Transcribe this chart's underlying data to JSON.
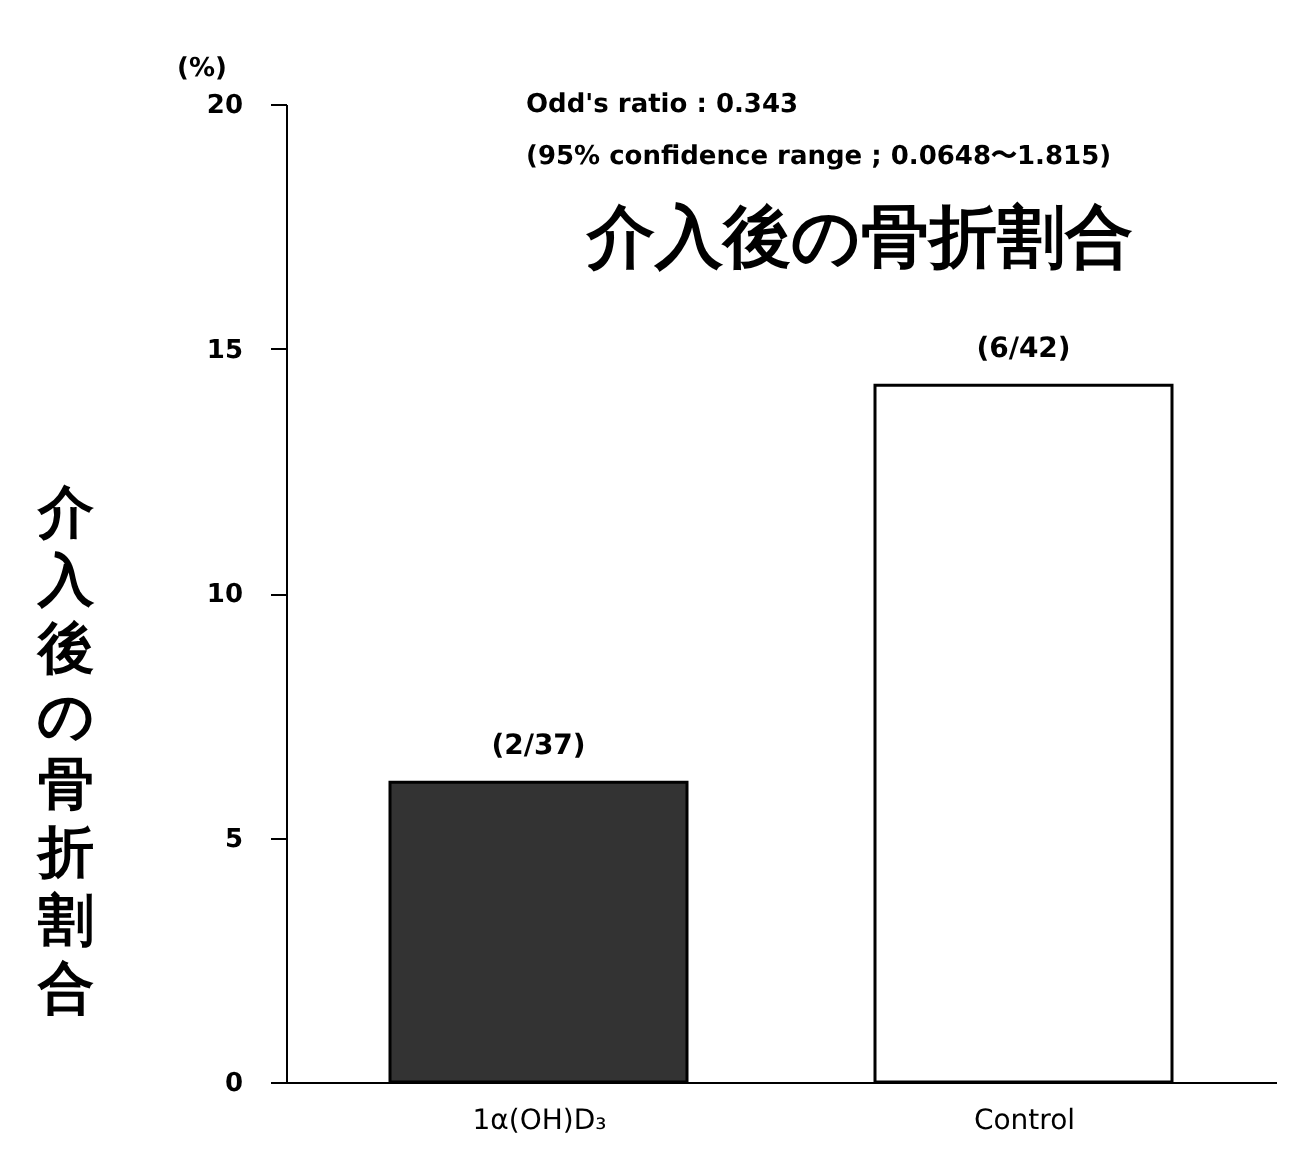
{
  "chart_data": {
    "type": "bar",
    "title": "介入後の骨折割合",
    "ylabel": "介入後の骨折割合",
    "categories": [
      "1α(OH)D₃",
      "Control"
    ],
    "values": [
      6.13,
      14.25
    ],
    "colors": [
      "#333333",
      "#ffffff"
    ],
    "value_labels": [
      "(2/37)",
      "(6/42)"
    ],
    "ylim": [
      0,
      20
    ],
    "yticks": [
      0,
      5,
      10,
      15,
      20
    ],
    "grid": false,
    "annotations": [
      "(%)",
      "Odd's ratio : 0.343",
      "(95% confidence range ; 0.0648〜1.815)"
    ]
  }
}
